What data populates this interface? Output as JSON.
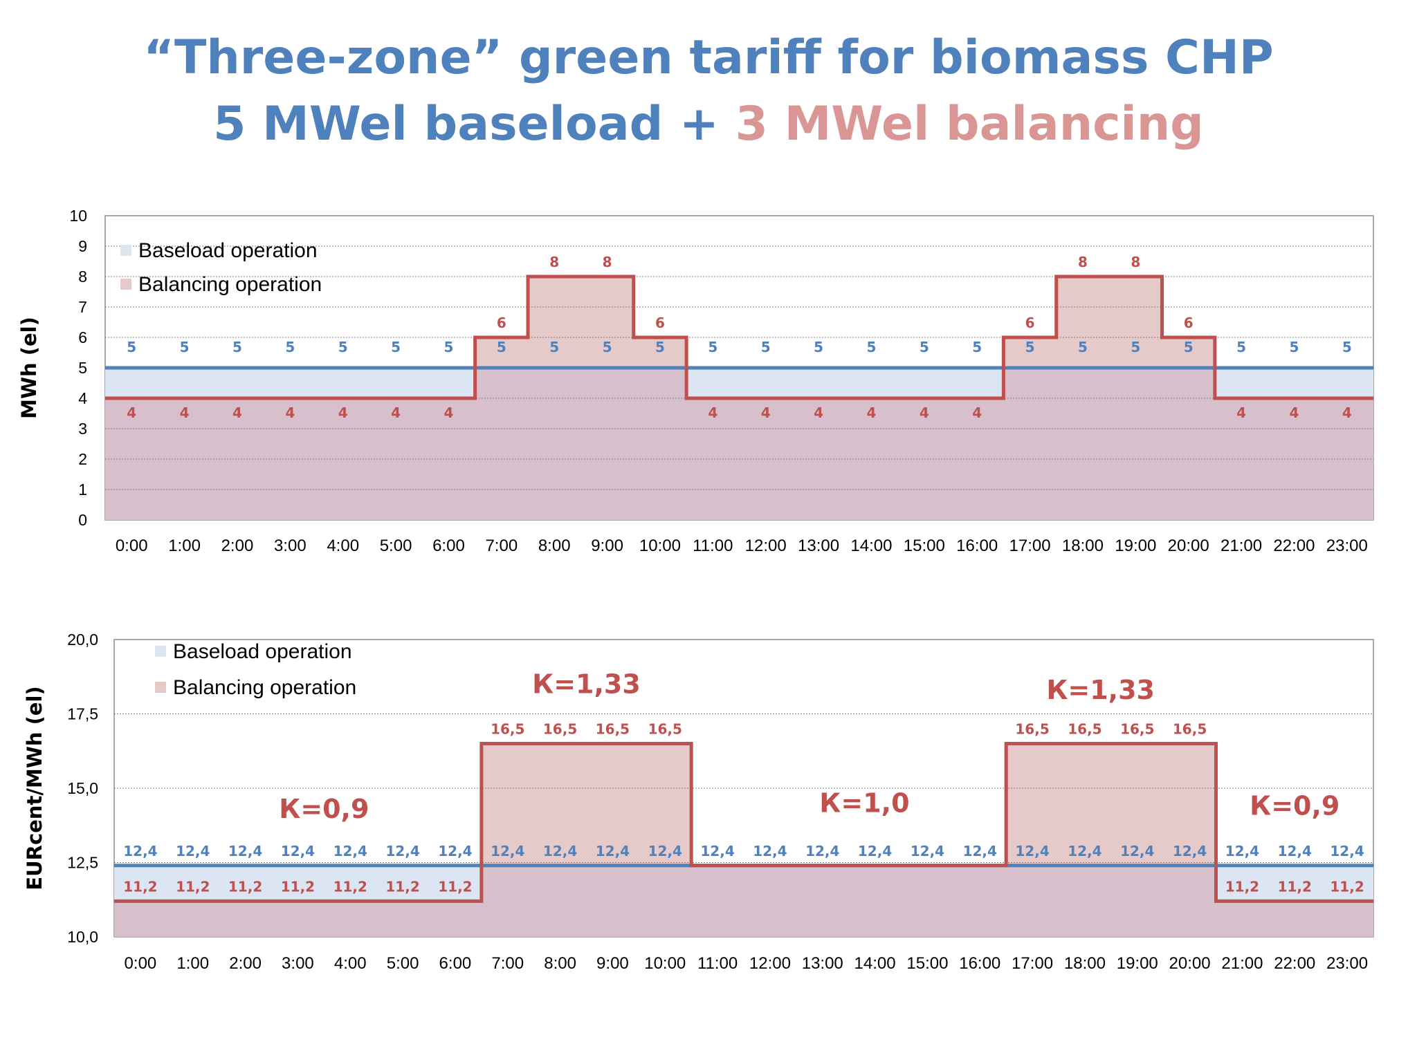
{
  "title": {
    "line1": "“Three-zone” green tariff for biomass CHP",
    "line2_part1": "5 MWel baseload + ",
    "line2_part2": "3 MWel balancing"
  },
  "colors": {
    "baseload": "#4f81bd",
    "balancing": "#c0504d",
    "baseload_fill": "#dce6f2",
    "balancing_fill": "#e6c9c9",
    "overlap_fill": "#d7bfcb",
    "title_pink": "#d99694"
  },
  "chart_data": [
    {
      "type": "area",
      "ylabel": "MWh (el)",
      "ylim": [
        0,
        10
      ],
      "yticks": [
        "0",
        "1",
        "2",
        "3",
        "4",
        "5",
        "6",
        "7",
        "8",
        "9",
        "10"
      ],
      "grid": true,
      "legend_position": "top-left",
      "categories": [
        "0:00",
        "1:00",
        "2:00",
        "3:00",
        "4:00",
        "5:00",
        "6:00",
        "7:00",
        "8:00",
        "9:00",
        "10:00",
        "11:00",
        "12:00",
        "13:00",
        "14:00",
        "15:00",
        "16:00",
        "17:00",
        "18:00",
        "19:00",
        "20:00",
        "21:00",
        "22:00",
        "23:00"
      ],
      "series": [
        {
          "name": "Baseload operation",
          "values": [
            5,
            5,
            5,
            5,
            5,
            5,
            5,
            5,
            5,
            5,
            5,
            5,
            5,
            5,
            5,
            5,
            5,
            5,
            5,
            5,
            5,
            5,
            5,
            5
          ],
          "labels": [
            "5",
            "5",
            "5",
            "5",
            "5",
            "5",
            "5",
            "5",
            "5",
            "5",
            "5",
            "5",
            "5",
            "5",
            "5",
            "5",
            "5",
            "5",
            "5",
            "5",
            "5",
            "5",
            "5",
            "5"
          ]
        },
        {
          "name": "Balancing operation",
          "values": [
            4,
            4,
            4,
            4,
            4,
            4,
            4,
            6,
            8,
            8,
            6,
            4,
            4,
            4,
            4,
            4,
            4,
            6,
            8,
            8,
            6,
            4,
            4,
            4
          ],
          "labels": [
            "4",
            "4",
            "4",
            "4",
            "4",
            "4",
            "4",
            "6",
            "8",
            "8",
            "6",
            "4",
            "4",
            "4",
            "4",
            "4",
            "4",
            "6",
            "8",
            "8",
            "6",
            "4",
            "4",
            "4"
          ]
        }
      ],
      "annotations": []
    },
    {
      "type": "area",
      "ylabel": "EURcent/MWh (el)",
      "ylim": [
        10,
        20
      ],
      "yticks": [
        "10,0",
        "12,5",
        "15,0",
        "17,5",
        "20,0"
      ],
      "grid": true,
      "legend_position": "top-left",
      "categories": [
        "0:00",
        "1:00",
        "2:00",
        "3:00",
        "4:00",
        "5:00",
        "6:00",
        "7:00",
        "8:00",
        "9:00",
        "10:00",
        "11:00",
        "12:00",
        "13:00",
        "14:00",
        "15:00",
        "16:00",
        "17:00",
        "18:00",
        "19:00",
        "20:00",
        "21:00",
        "22:00",
        "23:00"
      ],
      "series": [
        {
          "name": "Baseload operation",
          "values": [
            12.4,
            12.4,
            12.4,
            12.4,
            12.4,
            12.4,
            12.4,
            12.4,
            12.4,
            12.4,
            12.4,
            12.4,
            12.4,
            12.4,
            12.4,
            12.4,
            12.4,
            12.4,
            12.4,
            12.4,
            12.4,
            12.4,
            12.4,
            12.4
          ],
          "labels": [
            "12,4",
            "12,4",
            "12,4",
            "12,4",
            "12,4",
            "12,4",
            "12,4",
            "12,4",
            "12,4",
            "12,4",
            "12,4",
            "12,4",
            "12,4",
            "12,4",
            "12,4",
            "12,4",
            "12,4",
            "12,4",
            "12,4",
            "12,4",
            "12,4",
            "12,4",
            "12,4",
            "12,4"
          ]
        },
        {
          "name": "Balancing operation",
          "values": [
            11.2,
            11.2,
            11.2,
            11.2,
            11.2,
            11.2,
            11.2,
            16.5,
            16.5,
            16.5,
            16.5,
            12.4,
            12.4,
            12.4,
            12.4,
            12.4,
            12.4,
            16.5,
            16.5,
            16.5,
            16.5,
            11.2,
            11.2,
            11.2
          ],
          "labels": [
            "11,2",
            "11,2",
            "11,2",
            "11,2",
            "11,2",
            "11,2",
            "11,2",
            "16,5",
            "16,5",
            "16,5",
            "16,5",
            "",
            "",
            "",
            "",
            "",
            "",
            "16,5",
            "16,5",
            "16,5",
            "16,5",
            "11,2",
            "11,2",
            "11,2"
          ]
        }
      ],
      "annotations": [
        {
          "text": "К=0,9",
          "x": 3.5,
          "y": 14.0
        },
        {
          "text": "К=1,33",
          "x": 8.5,
          "y": 18.2
        },
        {
          "text": "К=1,0",
          "x": 13.8,
          "y": 14.2
        },
        {
          "text": "К=1,33",
          "x": 18.3,
          "y": 18.0
        },
        {
          "text": "К=0,9",
          "x": 22.0,
          "y": 14.1
        }
      ]
    }
  ]
}
